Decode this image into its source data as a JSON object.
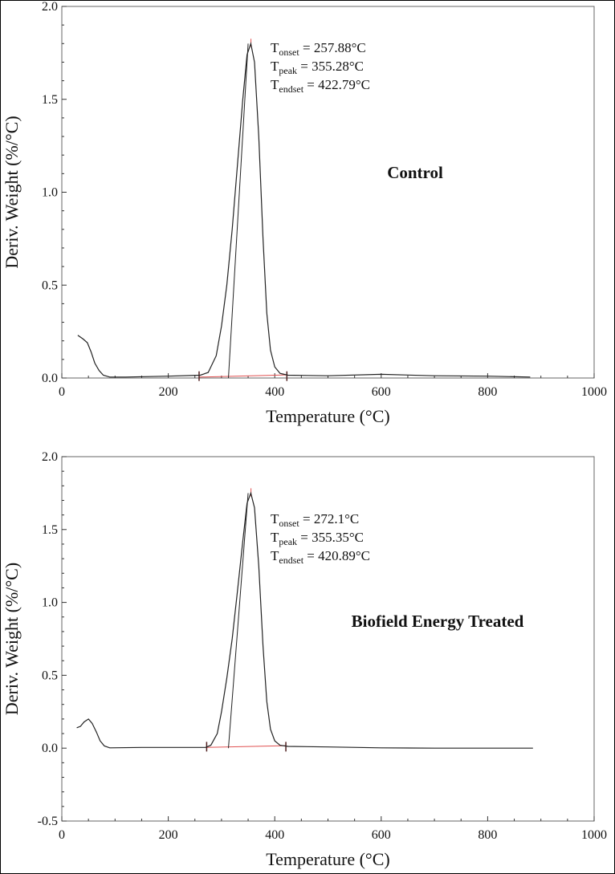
{
  "chart_data": [
    {
      "type": "line",
      "label": "Control",
      "xlabel": "Temperature (°C)",
      "ylabel": "Deriv. Weight (%/°C)",
      "xlim": [
        0,
        1000
      ],
      "ylim": [
        0,
        2.0
      ],
      "xticks": [
        "0",
        "200",
        "400",
        "600",
        "800",
        "1000"
      ],
      "yticks": [
        "0.0",
        "0.5",
        "1.0",
        "1.5",
        "2.0"
      ],
      "grid": false,
      "annotations": [
        {
          "T": "T",
          "sub": "onset",
          "value": " = 257.88°C"
        },
        {
          "T": "T",
          "sub": "peak",
          "value": " = 355.28°C"
        },
        {
          "T": "T",
          "sub": "endset",
          "value": " = 422.79°C"
        }
      ],
      "onset": 257.88,
      "peak": 355.28,
      "endset": 422.79,
      "series": [
        {
          "x": [
            30,
            40,
            48,
            55,
            62,
            70,
            78,
            90,
            120,
            200,
            260,
            275,
            290,
            300,
            310,
            320,
            330,
            340,
            348,
            355,
            362,
            370,
            378,
            385,
            392,
            400,
            410,
            425,
            500,
            600,
            700,
            800,
            880
          ],
          "y": [
            0.23,
            0.21,
            0.19,
            0.14,
            0.08,
            0.04,
            0.015,
            0.005,
            0.005,
            0.01,
            0.015,
            0.03,
            0.12,
            0.28,
            0.5,
            0.8,
            1.15,
            1.5,
            1.74,
            1.8,
            1.7,
            1.3,
            0.75,
            0.35,
            0.15,
            0.06,
            0.025,
            0.015,
            0.012,
            0.02,
            0.012,
            0.01,
            0.005
          ]
        }
      ]
    },
    {
      "type": "line",
      "label": "Biofield Energy Treated",
      "xlabel": "Temperature (°C)",
      "ylabel": "Deriv. Weight (%/°C)",
      "xlim": [
        0,
        1000
      ],
      "ylim": [
        -0.5,
        2.0
      ],
      "xticks": [
        "0",
        "200",
        "400",
        "600",
        "800",
        "1000"
      ],
      "yticks": [
        "-0.5",
        "0.0",
        "0.5",
        "1.0",
        "1.5",
        "2.0"
      ],
      "grid": false,
      "annotations": [
        {
          "T": "T",
          "sub": "onset",
          "value": " = 272.1°C"
        },
        {
          "T": "T",
          "sub": "peak",
          "value": " = 355.35°C"
        },
        {
          "T": "T",
          "sub": "endset",
          "value": " = 420.89°C"
        }
      ],
      "onset": 272.1,
      "peak": 355.35,
      "endset": 420.89,
      "series": [
        {
          "x": [
            28,
            35,
            42,
            50,
            57,
            65,
            72,
            80,
            90,
            150,
            270,
            280,
            292,
            300,
            310,
            320,
            330,
            340,
            348,
            355,
            362,
            370,
            378,
            385,
            392,
            400,
            410,
            425,
            500,
            600,
            700,
            800,
            885
          ],
          "y": [
            0.14,
            0.15,
            0.18,
            0.2,
            0.17,
            0.11,
            0.05,
            0.015,
            0.002,
            0.005,
            0.005,
            0.02,
            0.1,
            0.25,
            0.48,
            0.75,
            1.08,
            1.42,
            1.68,
            1.75,
            1.65,
            1.25,
            0.7,
            0.32,
            0.13,
            0.05,
            0.02,
            0.012,
            0.008,
            0.002,
            0.0,
            0.0,
            0.0
          ]
        }
      ]
    }
  ],
  "colors": {
    "curve": "#222222",
    "baseline": "#e05050",
    "axis": "#333333"
  }
}
